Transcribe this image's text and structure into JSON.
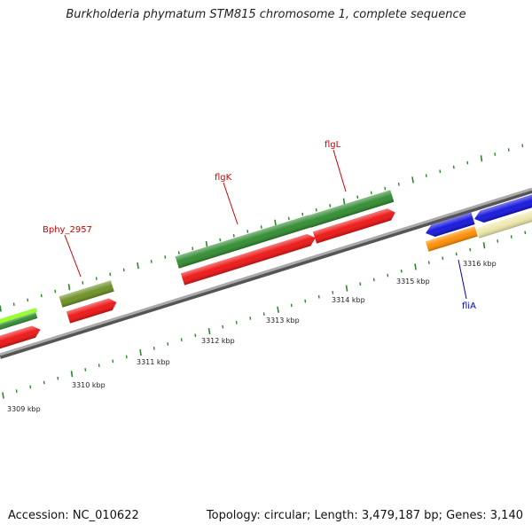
{
  "title": "Burkholderia phymatum STM815 chromosome 1, complete sequence",
  "footer": {
    "accession": "Accession: NC_010622",
    "summary": "Topology: circular; Length: 3,479,187 bp; Genes: 3,140"
  },
  "colors": {
    "backbone": "#8c8c8c",
    "tick_forward": "#2a8a2a",
    "tick_reverse": "#2a8a2a",
    "label_forward": "#cc0000",
    "label_reverse": "#0000cc",
    "gene_green": "#2e8b2e",
    "gene_red": "#ee1111",
    "gene_olive": "#6b8e23",
    "gene_blue": "#1111dd",
    "gene_orange": "#ff8c00",
    "gene_khaki": "#eee8aa",
    "gene_lime": "#9aff30"
  },
  "scale_labels": [
    "3309 kbp",
    "3310 kbp",
    "3311 kbp",
    "3312 kbp",
    "3313 kbp",
    "3314 kbp",
    "3315 kbp",
    "3316 kbp"
  ],
  "gene_labels": [
    {
      "name": "Bphy_2957",
      "strand": "forward"
    },
    {
      "name": "flgK",
      "strand": "forward"
    },
    {
      "name": "flgL",
      "strand": "forward"
    },
    {
      "name": "fliA",
      "strand": "reverse"
    }
  ]
}
